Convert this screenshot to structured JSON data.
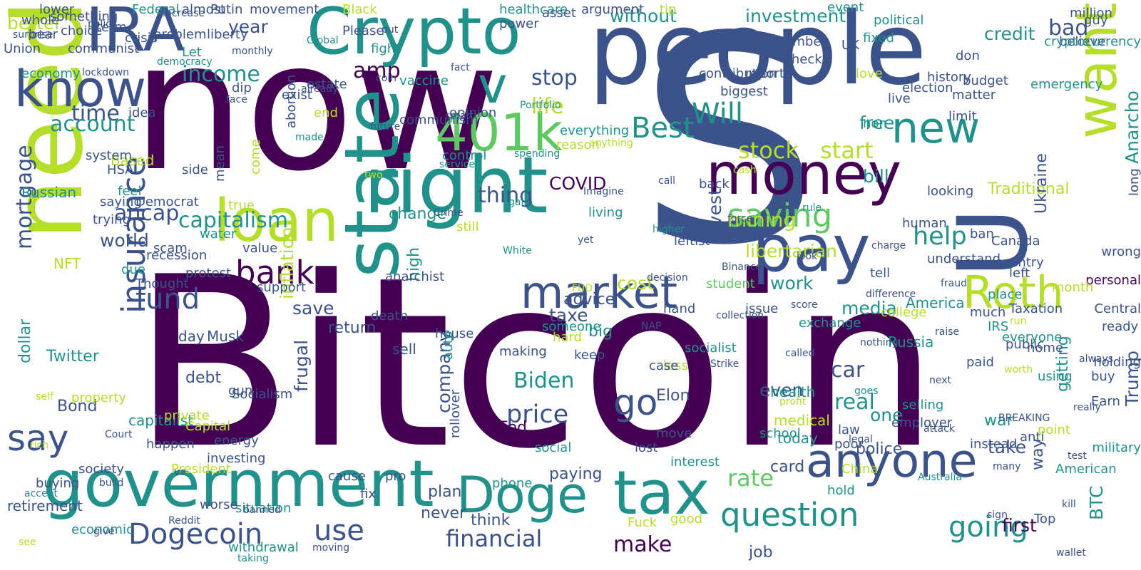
{
  "palette": [
    "#440154",
    "#3b528b",
    "#21918c",
    "#5ec962",
    "#b5de2b"
  ],
  "words": [
    {
      "text": "Bitcoin",
      "color": 0
    },
    {
      "text": "now",
      "color": 0
    },
    {
      "text": "people",
      "color": 1
    },
    {
      "text": "S",
      "color": 1
    },
    {
      "text": "need",
      "color": 4
    },
    {
      "text": "right",
      "color": 2
    },
    {
      "text": "government",
      "color": 2
    },
    {
      "text": "Crypto",
      "color": 2
    },
    {
      "text": "IRA",
      "color": 1
    },
    {
      "text": "money",
      "color": 0
    },
    {
      "text": "state",
      "color": 2
    },
    {
      "text": "pay",
      "color": 1
    },
    {
      "text": "loan",
      "color": 4
    },
    {
      "text": "tax",
      "color": 2
    },
    {
      "text": "anyone",
      "color": 1
    },
    {
      "text": "market",
      "color": 1
    },
    {
      "text": "Roth",
      "color": 4
    },
    {
      "text": "want",
      "color": 4
    },
    {
      "text": "know",
      "color": 1
    },
    {
      "text": "401k",
      "color": 3
    },
    {
      "text": "Doge",
      "color": 2
    },
    {
      "text": "new",
      "color": 2
    },
    {
      "text": "U",
      "color": 1
    },
    {
      "text": "v",
      "color": 2
    },
    {
      "text": "saving",
      "color": 3
    },
    {
      "text": "insurance",
      "color": 1
    },
    {
      "text": "question",
      "color": 2
    },
    {
      "text": "go",
      "color": 1
    },
    {
      "text": "say",
      "color": 1
    },
    {
      "text": "bank",
      "color": 0
    },
    {
      "text": "Dogecoin",
      "color": 1
    },
    {
      "text": "use",
      "color": 1
    },
    {
      "text": "fund",
      "color": 1
    },
    {
      "text": "capitalism",
      "color": 2
    },
    {
      "text": "help",
      "color": 2
    },
    {
      "text": "Will",
      "color": 2
    },
    {
      "text": "Best",
      "color": 2
    },
    {
      "text": "stock",
      "color": 4
    },
    {
      "text": "start",
      "color": 4
    },
    {
      "text": "going",
      "color": 2
    },
    {
      "text": "mortgage",
      "color": 1
    },
    {
      "text": "financial",
      "color": 1
    },
    {
      "text": "make",
      "color": 0
    },
    {
      "text": "price",
      "color": 1
    },
    {
      "text": "Biden",
      "color": 2
    },
    {
      "text": "rate",
      "color": 3
    },
    {
      "text": "car",
      "color": 1
    },
    {
      "text": "real",
      "color": 2
    },
    {
      "text": "time",
      "color": 1
    },
    {
      "text": "account",
      "color": 2
    },
    {
      "text": "income",
      "color": 2
    },
    {
      "text": "life",
      "color": 4
    },
    {
      "text": "stop",
      "color": 1
    },
    {
      "text": "amp",
      "color": 0
    },
    {
      "text": "credit",
      "color": 2
    },
    {
      "text": "bad",
      "color": 1
    },
    {
      "text": "better",
      "color": 4
    },
    {
      "text": "year",
      "color": 1
    },
    {
      "text": "without",
      "color": 2
    },
    {
      "text": "investment",
      "color": 2
    },
    {
      "text": "thing",
      "color": 1
    },
    {
      "text": "ancap",
      "color": 1
    },
    {
      "text": "world",
      "color": 1
    },
    {
      "text": "COVID",
      "color": 0
    },
    {
      "text": "change",
      "color": 2
    },
    {
      "text": "mining",
      "color": 4
    },
    {
      "text": "libertarian",
      "color": 4
    },
    {
      "text": "bill",
      "color": 2
    },
    {
      "text": "free",
      "color": 2
    },
    {
      "text": "advice",
      "color": 1
    },
    {
      "text": "taxe",
      "color": 1
    },
    {
      "text": "save",
      "color": 1
    },
    {
      "text": "cost",
      "color": 4
    },
    {
      "text": "invest",
      "color": 1
    },
    {
      "text": "work",
      "color": 2
    },
    {
      "text": "media",
      "color": 2
    },
    {
      "text": "even",
      "color": 1
    },
    {
      "text": "one",
      "color": 2
    },
    {
      "text": "take",
      "color": 1
    },
    {
      "text": "first",
      "color": 0
    },
    {
      "text": "BTC",
      "color": 2
    },
    {
      "text": "Anarcho",
      "color": 2
    },
    {
      "text": "frugal",
      "color": 1
    },
    {
      "text": "inflation",
      "color": 4
    },
    {
      "text": "company",
      "color": 1
    },
    {
      "text": "Traditional",
      "color": 4
    },
    {
      "text": "Ukraine",
      "color": 1
    },
    {
      "text": "way",
      "color": 1
    },
    {
      "text": "getting",
      "color": 2
    },
    {
      "text": "war",
      "color": 2
    },
    {
      "text": "police",
      "color": 1
    },
    {
      "text": "debt",
      "color": 1
    },
    {
      "text": "Twitter",
      "color": 2
    },
    {
      "text": "retirement",
      "color": 1
    },
    {
      "text": "never",
      "color": 1
    },
    {
      "text": "think",
      "color": 1
    },
    {
      "text": "plan",
      "color": 1
    },
    {
      "text": "paying",
      "color": 1
    },
    {
      "text": "Fed",
      "color": 0
    },
    {
      "text": "big",
      "color": 2
    },
    {
      "text": "high",
      "color": 2
    },
    {
      "text": "return",
      "color": 1
    },
    {
      "text": "day",
      "color": 1
    },
    {
      "text": "Musk",
      "color": 1
    },
    {
      "text": "Elon",
      "color": 1
    },
    {
      "text": "Trump",
      "color": 1
    },
    {
      "text": "health",
      "color": 2
    },
    {
      "text": "medical",
      "color": 4
    },
    {
      "text": "today",
      "color": 2
    },
    {
      "text": "card",
      "color": 1
    },
    {
      "text": "job",
      "color": 1
    },
    {
      "text": "sell",
      "color": 1
    },
    {
      "text": "capitalist",
      "color": 2
    },
    {
      "text": "Russia",
      "color": 2
    },
    {
      "text": "America",
      "color": 2
    },
    {
      "text": "dollar",
      "color": 2
    },
    {
      "text": "Bond",
      "color": 1
    },
    {
      "text": "NFT",
      "color": 4
    },
    {
      "text": "Russian",
      "color": 2
    },
    {
      "text": "Based",
      "color": 4
    },
    {
      "text": "economy",
      "color": 2
    },
    {
      "text": "Democrat",
      "color": 1
    },
    {
      "text": "communist",
      "color": 1
    },
    {
      "text": "something",
      "color": 1
    },
    {
      "text": "Federal",
      "color": 2
    },
    {
      "text": "dip",
      "color": 1
    },
    {
      "text": "true",
      "color": 4
    },
    {
      "text": "support",
      "color": 1
    },
    {
      "text": "power",
      "color": 1
    },
    {
      "text": "control",
      "color": 2
    },
    {
      "text": "opinion",
      "color": 1
    },
    {
      "text": "vaccine",
      "color": 2
    },
    {
      "text": "reason",
      "color": 4
    },
    {
      "text": "everything",
      "color": 2
    },
    {
      "text": "living",
      "color": 2
    },
    {
      "text": "back",
      "color": 1
    },
    {
      "text": "come",
      "color": 4
    },
    {
      "text": "recession",
      "color": 1
    },
    {
      "text": "mean",
      "color": 1
    },
    {
      "text": "side",
      "color": 1
    },
    {
      "text": "idea",
      "color": 1
    },
    {
      "text": "feel",
      "color": 2
    },
    {
      "text": "system",
      "color": 1
    },
    {
      "text": "HSA",
      "color": 1
    },
    {
      "text": "saying",
      "color": 1
    },
    {
      "text": "trying",
      "color": 1
    },
    {
      "text": "scam",
      "color": 1
    },
    {
      "text": "due",
      "color": 2
    },
    {
      "text": "value",
      "color": 1
    },
    {
      "text": "water",
      "color": 2
    },
    {
      "text": "anarchist",
      "color": 1
    },
    {
      "text": "communism",
      "color": 1
    },
    {
      "text": "death",
      "color": 1
    },
    {
      "text": "still",
      "color": 4
    },
    {
      "text": "making",
      "color": 1
    },
    {
      "text": "house",
      "color": 1
    },
    {
      "text": "hard",
      "color": 4
    },
    {
      "text": "social",
      "color": 2
    },
    {
      "text": "someone",
      "color": 2
    },
    {
      "text": "keep",
      "color": 1
    },
    {
      "text": "less",
      "color": 4
    },
    {
      "text": "socialist",
      "color": 2
    },
    {
      "text": "issue",
      "color": 1
    },
    {
      "text": "exchange",
      "color": 2
    },
    {
      "text": "leftist",
      "color": 1
    },
    {
      "text": "school",
      "color": 2
    },
    {
      "text": "law",
      "color": 1
    },
    {
      "text": "poor",
      "color": 1
    },
    {
      "text": "China",
      "color": 4
    },
    {
      "text": "hold",
      "color": 2
    },
    {
      "text": "selling",
      "color": 2
    },
    {
      "text": "employer",
      "color": 1
    },
    {
      "text": "place",
      "color": 2
    },
    {
      "text": "much",
      "color": 1
    },
    {
      "text": "everyone",
      "color": 2
    },
    {
      "text": "ban",
      "color": 1
    },
    {
      "text": "Canada",
      "color": 1
    },
    {
      "text": "country",
      "color": 1
    },
    {
      "text": "home",
      "color": 1
    },
    {
      "text": "using",
      "color": 2
    },
    {
      "text": "good",
      "color": 4
    },
    {
      "text": "Fuck",
      "color": 4
    },
    {
      "text": "lost",
      "color": 1
    },
    {
      "text": "move",
      "color": 1
    },
    {
      "text": "interest",
      "color": 2
    },
    {
      "text": "case",
      "color": 1
    },
    {
      "text": "hand",
      "color": 1
    },
    {
      "text": "student",
      "color": 3
    },
    {
      "text": "investing",
      "color": 1
    },
    {
      "text": "energy",
      "color": 1
    },
    {
      "text": "Capital",
      "color": 4
    },
    {
      "text": "President",
      "color": 4
    },
    {
      "text": "worse",
      "color": 1
    },
    {
      "text": "situation",
      "color": 2
    },
    {
      "text": "withdrawal",
      "color": 2
    },
    {
      "text": "economic",
      "color": 2
    },
    {
      "text": "society",
      "color": 1
    },
    {
      "text": "buying",
      "color": 1
    },
    {
      "text": "auto",
      "color": 2
    },
    {
      "text": "rollover",
      "color": 1
    },
    {
      "text": "fix",
      "color": 1
    },
    {
      "text": "cause",
      "color": 1
    },
    {
      "text": "pro",
      "color": 1
    },
    {
      "text": "phone",
      "color": 2
    },
    {
      "text": "gun",
      "color": 1
    },
    {
      "text": "Socialism",
      "color": 1
    },
    {
      "text": "protest",
      "color": 1
    },
    {
      "text": "Thought",
      "color": 1
    },
    {
      "text": "happen",
      "color": 1
    },
    {
      "text": "private",
      "color": 4
    },
    {
      "text": "property",
      "color": 4
    },
    {
      "text": "Taxation",
      "color": 1
    },
    {
      "text": "left",
      "color": 1
    },
    {
      "text": "IRS",
      "color": 2
    },
    {
      "text": "anti",
      "color": 1
    },
    {
      "text": "point",
      "color": 4
    },
    {
      "text": "military",
      "color": 2
    },
    {
      "text": "Top",
      "color": 1
    },
    {
      "text": "American",
      "color": 2
    },
    {
      "text": "buy",
      "color": 1
    },
    {
      "text": "ready",
      "color": 1
    },
    {
      "text": "personal",
      "color": 0
    },
    {
      "text": "wrong",
      "color": 1
    },
    {
      "text": "long",
      "color": 1
    },
    {
      "text": "understand",
      "color": 1
    },
    {
      "text": "instead",
      "color": 1
    },
    {
      "text": "public",
      "color": 1
    },
    {
      "text": "month",
      "color": 4
    },
    {
      "text": "tell",
      "color": 1
    },
    {
      "text": "live",
      "color": 1
    },
    {
      "text": "history",
      "color": 1
    },
    {
      "text": "don",
      "color": 1
    },
    {
      "text": "looking",
      "color": 1
    },
    {
      "text": "budget",
      "color": 1
    },
    {
      "text": "paid",
      "color": 1
    },
    {
      "text": "guy",
      "color": 1
    },
    {
      "text": "believe",
      "color": 1
    },
    {
      "text": "million",
      "color": 1
    },
    {
      "text": "emergency",
      "color": 2
    },
    {
      "text": "cryptocurrency",
      "color": 2
    },
    {
      "text": "Central",
      "color": 1
    },
    {
      "text": "Earn",
      "color": 1
    },
    {
      "text": "holding",
      "color": 1
    },
    {
      "text": "matter",
      "color": 1
    },
    {
      "text": "election",
      "color": 1
    },
    {
      "text": "love",
      "color": 4
    },
    {
      "text": "non",
      "color": 2
    },
    {
      "text": "human",
      "color": 1
    },
    {
      "text": "college",
      "color": 4
    },
    {
      "text": "limit",
      "color": 1
    },
    {
      "text": "tip",
      "color": 4
    },
    {
      "text": "check",
      "color": 1
    },
    {
      "text": "report",
      "color": 1
    },
    {
      "text": "contribution",
      "color": 1
    },
    {
      "text": "biggest",
      "color": 1
    },
    {
      "text": "UK",
      "color": 1
    },
    {
      "text": "political",
      "color": 2
    },
    {
      "text": "event",
      "color": 2
    },
    {
      "text": "fixed",
      "color": 2
    },
    {
      "text": "average",
      "color": 1
    },
    {
      "text": "Remember",
      "color": 1
    },
    {
      "text": "healthcare",
      "color": 2
    },
    {
      "text": "asset",
      "color": 1
    },
    {
      "text": "argument",
      "color": 1
    },
    {
      "text": "Please",
      "color": 1
    },
    {
      "text": "Black",
      "color": 4
    },
    {
      "text": "fight",
      "color": 2
    },
    {
      "text": "estate",
      "color": 1
    },
    {
      "text": "end",
      "color": 4
    },
    {
      "text": "exist",
      "color": 1
    },
    {
      "text": "abortion",
      "color": 1
    },
    {
      "text": "movement",
      "color": 1
    },
    {
      "text": "liberty",
      "color": 1
    },
    {
      "text": "Putin",
      "color": 1
    },
    {
      "text": "almost",
      "color": 1
    },
    {
      "text": "problem",
      "color": 1
    },
    {
      "text": "Union",
      "color": 1
    },
    {
      "text": "choice",
      "color": 1
    },
    {
      "text": "bear",
      "color": 1
    },
    {
      "text": "whole",
      "color": 1
    },
    {
      "text": "term",
      "color": 1
    },
    {
      "text": "lower",
      "color": 1
    },
    {
      "text": "crisis",
      "color": 1
    },
    {
      "text": "Let",
      "color": 2
    },
    {
      "text": "cash",
      "color": 4
    },
    {
      "text": "rule",
      "color": 2
    },
    {
      "text": "charge",
      "color": 1
    },
    {
      "text": "fraud",
      "color": 1
    },
    {
      "text": "run",
      "color": 4
    },
    {
      "text": "always",
      "color": 1
    },
    {
      "text": "self",
      "color": 4
    },
    {
      "text": "Court",
      "color": 1
    },
    {
      "text": "ve",
      "color": 1
    },
    {
      "text": "banned",
      "color": 1
    },
    {
      "text": "moving",
      "color": 1
    },
    {
      "text": "put",
      "color": 1
    },
    {
      "text": "fact",
      "color": 1
    },
    {
      "text": "Portfolio",
      "color": 2
    },
    {
      "text": "anything",
      "color": 4
    },
    {
      "text": "call",
      "color": 1
    },
    {
      "text": "force",
      "color": 1
    },
    {
      "text": "look",
      "color": 1
    },
    {
      "text": "difference",
      "color": 1
    },
    {
      "text": "raise",
      "color": 1
    },
    {
      "text": "worth",
      "color": 4
    },
    {
      "text": "really",
      "color": 1
    },
    {
      "text": "rich",
      "color": 4
    },
    {
      "text": "build",
      "color": 1
    },
    {
      "text": "Reddit",
      "color": 1
    },
    {
      "text": "taking",
      "color": 2
    },
    {
      "text": "Global",
      "color": 2
    },
    {
      "text": "coin",
      "color": 1
    },
    {
      "text": "smart",
      "color": 1
    },
    {
      "text": "spending",
      "color": 2
    },
    {
      "text": "Imagine",
      "color": 1
    },
    {
      "text": "higher",
      "color": 2
    },
    {
      "text": "Binance",
      "color": 1
    },
    {
      "text": "score",
      "color": 1
    },
    {
      "text": "nothing",
      "color": 1
    },
    {
      "text": "next",
      "color": 1
    },
    {
      "text": "BREAKING",
      "color": 1
    },
    {
      "text": "test",
      "color": 1
    },
    {
      "text": "accept",
      "color": 2
    },
    {
      "text": "give",
      "color": 1
    },
    {
      "text": "increase",
      "color": 1
    },
    {
      "text": "monthly",
      "color": 1
    },
    {
      "text": "already",
      "color": 1
    },
    {
      "text": "future",
      "color": 1
    },
    {
      "text": "service",
      "color": 2
    },
    {
      "text": "gain",
      "color": 2
    },
    {
      "text": "yet",
      "color": 1
    },
    {
      "text": "decision",
      "color": 1
    },
    {
      "text": "collection",
      "color": 1
    },
    {
      "text": "called",
      "color": 1
    },
    {
      "text": "goes",
      "color": 2
    },
    {
      "text": "attack",
      "color": 1
    },
    {
      "text": "many",
      "color": 1
    },
    {
      "text": "kill",
      "color": 1
    },
    {
      "text": "see",
      "color": 4
    },
    {
      "text": "policy",
      "color": 1
    },
    {
      "text": "democracy",
      "color": 2
    },
    {
      "text": "face",
      "color": 1
    },
    {
      "text": "made",
      "color": 2
    },
    {
      "text": "two",
      "color": 4
    },
    {
      "text": "Crime",
      "color": 1
    },
    {
      "text": "White",
      "color": 2
    },
    {
      "text": "FUD",
      "color": 4
    },
    {
      "text": "NAP",
      "color": 1
    },
    {
      "text": "Strike",
      "color": 1
    },
    {
      "text": "profit",
      "color": 4
    },
    {
      "text": "legal",
      "color": 1
    },
    {
      "text": "Australia",
      "color": 2
    },
    {
      "text": "sign",
      "color": 1
    },
    {
      "text": "wallet",
      "color": 1
    },
    {
      "text": "surprise",
      "color": 1
    },
    {
      "text": "lockdown",
      "color": 1
    }
  ]
}
